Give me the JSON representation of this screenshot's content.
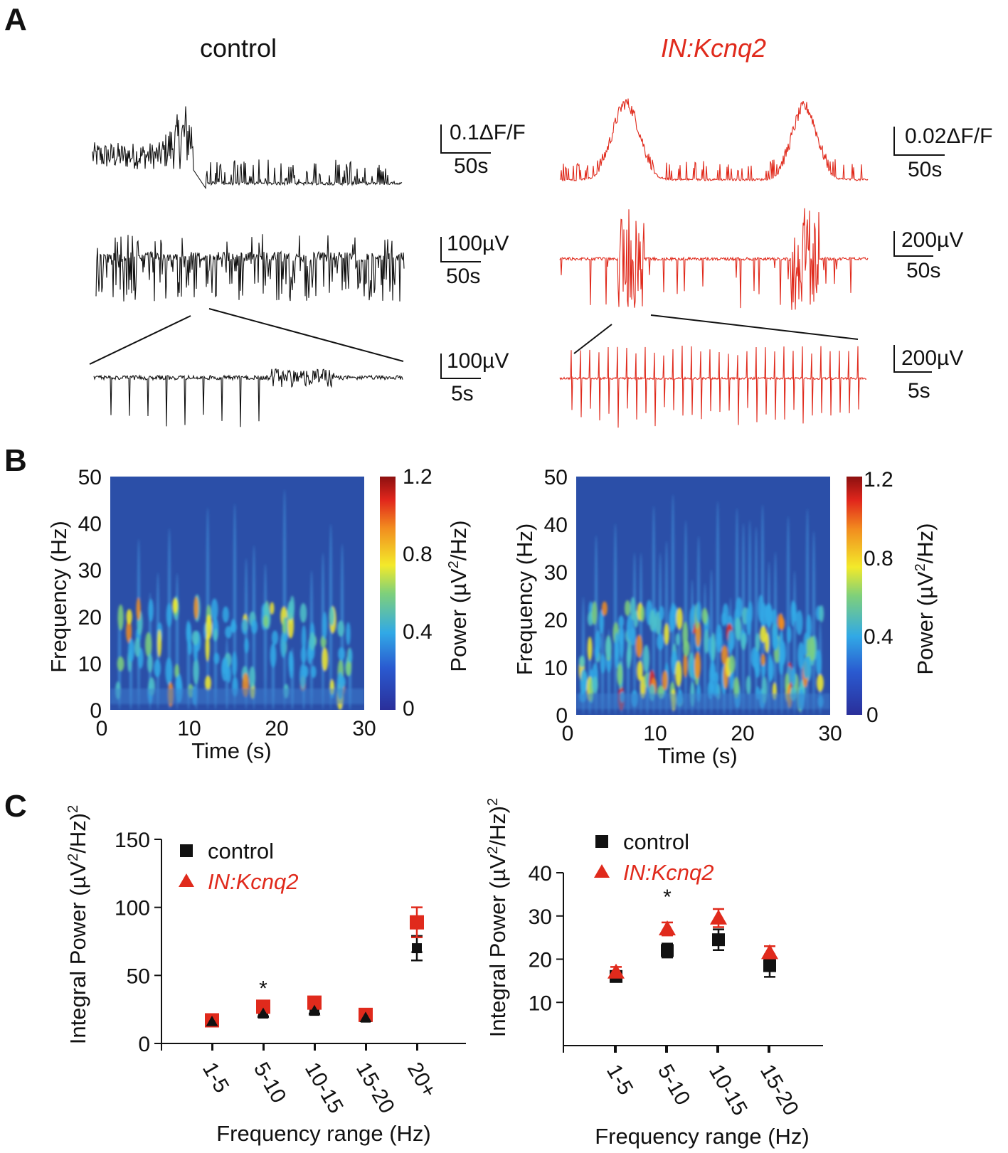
{
  "panel_labels": [
    "A",
    "B",
    "C"
  ],
  "panel_a": {
    "conditions": [
      "control",
      "IN:Kcnq2"
    ],
    "scale_bars": {
      "control_row1": [
        "0.1ΔF/F",
        "50s"
      ],
      "control_row2": [
        "100µV",
        "50s"
      ],
      "control_row3": [
        "100µV",
        "5s"
      ],
      "kcnq2_row1": [
        "0.02ΔF/F",
        "50s"
      ],
      "kcnq2_row2": [
        "200µV",
        "50s"
      ],
      "kcnq2_row3": [
        "200µV",
        "5s"
      ]
    }
  },
  "colors": {
    "control": "#111111",
    "kcnq2": "#e02a1c",
    "spectrogram_bg": "#2b4fa8"
  },
  "chart_data": [
    {
      "id": "spectrogram-control",
      "type": "heatmap",
      "xlabel": "Time (s)",
      "ylabel": "Frequency (Hz)",
      "xlim": [
        0,
        30
      ],
      "ylim": [
        0,
        50
      ],
      "xticks": [
        "0",
        "10",
        "20",
        "30"
      ],
      "yticks": [
        "0",
        "10",
        "20",
        "30",
        "40",
        "50"
      ],
      "colorbar": {
        "label": "Power (µV²/Hz)",
        "label_base": "Power (µV",
        "label_sup": "2",
        "label_end": "/Hz)",
        "range": [
          0,
          1.2
        ],
        "ticks": [
          "0",
          "0.4",
          "0.8",
          "1.2"
        ]
      }
    },
    {
      "id": "spectrogram-kcnq2",
      "type": "heatmap",
      "xlabel": "Time (s)",
      "ylabel": "Frequency (Hz)",
      "xlim": [
        0,
        30
      ],
      "ylim": [
        0,
        50
      ],
      "xticks": [
        "0",
        "10",
        "20",
        "30"
      ],
      "yticks": [
        "0",
        "10",
        "20",
        "30",
        "40",
        "50"
      ],
      "colorbar": {
        "label": "Power (µV²/Hz)",
        "label_base": "Power (µV",
        "label_sup": "2",
        "label_end": "/Hz)",
        "range": [
          0,
          1.2
        ],
        "ticks": [
          "0",
          "0.4",
          "0.8",
          "1.2"
        ]
      }
    },
    {
      "id": "integral-power-left",
      "type": "scatter",
      "categories": [
        "1-5",
        "5-10",
        "10-15",
        "15-20",
        "20+"
      ],
      "xlabel": "Frequency range (Hz)",
      "ylabel": "Integral Power (µV²/Hz)²",
      "ylabel_parts": {
        "base": "Integral Power (µV",
        "sup": "2",
        "end": "/Hz)",
        "outer_sup": "2"
      },
      "ylim": [
        0,
        150
      ],
      "yticks": [
        0,
        50,
        100,
        150
      ],
      "series": [
        {
          "name": "control",
          "marker": "square",
          "legend_marker": "square",
          "values": [
            16,
            22,
            24,
            19,
            70
          ],
          "errors": [
            1.5,
            2,
            2,
            1.5,
            9
          ]
        },
        {
          "name": "IN:Kcnq2",
          "marker": "square",
          "legend_marker": "triangle",
          "values": [
            17,
            27,
            30,
            21,
            89
          ],
          "errors": [
            1.5,
            2,
            2,
            2,
            11
          ]
        }
      ],
      "annotations": [
        {
          "category": "5-10",
          "text": "*"
        }
      ]
    },
    {
      "id": "integral-power-right",
      "type": "scatter",
      "categories": [
        "1-5",
        "5-10",
        "10-15",
        "15-20"
      ],
      "xlabel": "Frequency range (Hz)",
      "ylabel": "Integral Power (µV²/Hz)²",
      "ylabel_parts": {
        "base": "Integral Power (µV",
        "sup": "2",
        "end": "/Hz)",
        "outer_sup": "2"
      },
      "ylim": [
        0,
        40
      ],
      "yticks": [
        10,
        20,
        30,
        40
      ],
      "series": [
        {
          "name": "control",
          "marker": "square",
          "legend_marker": "square",
          "values": [
            16,
            22,
            24.5,
            18.5
          ],
          "errors": [
            1.2,
            1.6,
            2.4,
            2.6
          ]
        },
        {
          "name": "IN:Kcnq2",
          "marker": "triangle",
          "legend_marker": "triangle",
          "values": [
            17,
            27,
            29.5,
            21.5
          ],
          "errors": [
            1.2,
            1.5,
            2.1,
            1.5
          ]
        }
      ],
      "annotations": [
        {
          "category": "5-10",
          "text": "*"
        }
      ]
    }
  ]
}
